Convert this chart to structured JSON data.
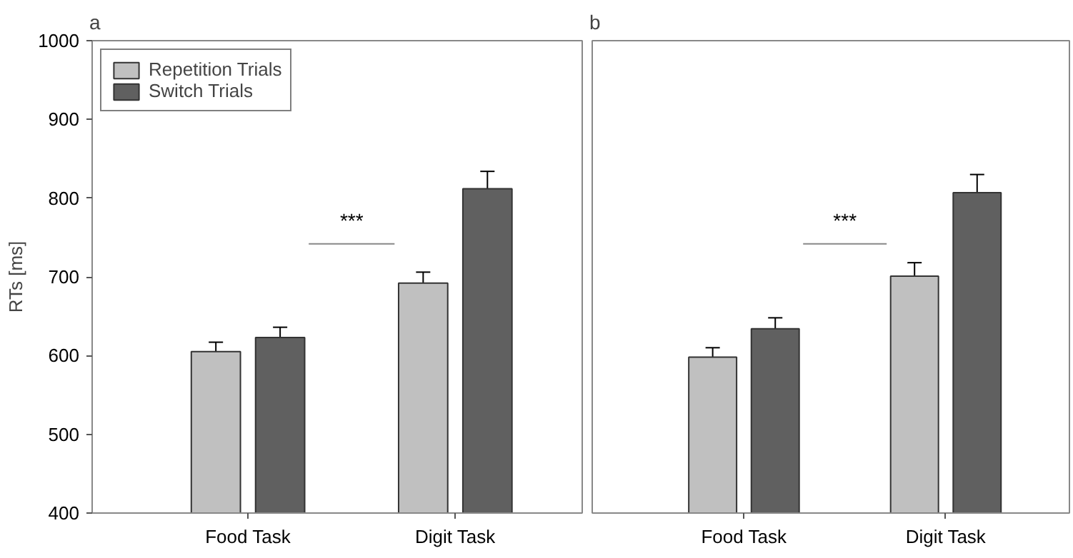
{
  "chart_data": [
    {
      "type": "bar",
      "title": "a",
      "ylabel": "RTs [ms]",
      "categories": [
        "Food Task",
        "Digit Task"
      ],
      "series": [
        {
          "name": "Repetition Trials",
          "color": "#c0c0c0",
          "values": [
            605,
            692
          ],
          "errors": [
            12,
            14
          ]
        },
        {
          "name": "Switch Trials",
          "color": "#606060",
          "values": [
            623,
            812
          ],
          "errors": [
            13,
            22
          ]
        }
      ],
      "ylim": [
        400,
        1000
      ],
      "yticks": [
        400,
        500,
        600,
        700,
        800,
        900,
        1000
      ],
      "legend": "top left",
      "grid": false,
      "annotations": [
        "***"
      ]
    },
    {
      "type": "bar",
      "title": "b",
      "categories": [
        "Food Task",
        "Digit Task"
      ],
      "series": [
        {
          "color": "#c0c0c0",
          "values": [
            598,
            701
          ],
          "errors": [
            12,
            17
          ]
        },
        {
          "color": "#606060",
          "values": [
            634,
            807
          ],
          "errors": [
            14,
            23
          ]
        }
      ],
      "ylim": [
        400,
        1000
      ],
      "yticks": [
        400,
        500,
        600,
        700,
        800,
        900,
        1000
      ],
      "tick_labels": "x",
      "legend": false,
      "grid": false,
      "annotations": [
        "***"
      ]
    }
  ]
}
